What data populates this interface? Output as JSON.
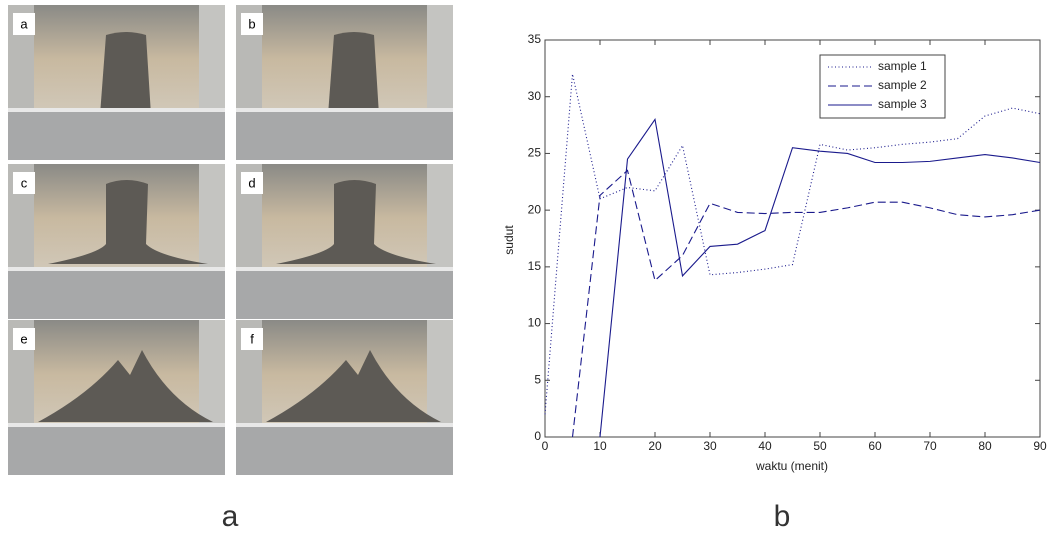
{
  "photos": {
    "labels": [
      "a",
      "b",
      "c",
      "d",
      "e",
      "f"
    ]
  },
  "panel_labels": [
    "a",
    "b"
  ],
  "chart_data": {
    "type": "line",
    "x_label": "waktu (menit)",
    "y_label": "sudut",
    "x": [
      0,
      5,
      10,
      15,
      20,
      25,
      30,
      35,
      40,
      45,
      50,
      55,
      60,
      65,
      70,
      75,
      80,
      85,
      90
    ],
    "series": [
      {
        "name": "sample 1",
        "color": "#1a1a8c",
        "dash": "1,2.5",
        "values": [
          2,
          32,
          21,
          22,
          21.7,
          25.7,
          14.3,
          14.5,
          14.8,
          15.2,
          25.8,
          25.3,
          25.5,
          25.8,
          26,
          26.3,
          28.3,
          29,
          28.5
        ]
      },
      {
        "name": "sample 2",
        "color": "#1a1a8c",
        "dash": "8,4",
        "values": [
          null,
          0,
          21.3,
          23.5,
          13.8,
          16,
          20.6,
          19.8,
          19.7,
          19.8,
          19.8,
          20.2,
          20.7,
          20.7,
          20.2,
          19.6,
          19.4,
          19.6,
          20
        ]
      },
      {
        "name": "sample 3",
        "color": "#1a1a8c",
        "dash": "none",
        "values": [
          null,
          null,
          0,
          24.5,
          28,
          14.2,
          16.8,
          17,
          18.2,
          25.5,
          25.2,
          25,
          24.2,
          24.2,
          24.3,
          24.6,
          24.9,
          24.6,
          24.2
        ]
      }
    ],
    "xlim": [
      0,
      90
    ],
    "xticks": [
      0,
      10,
      20,
      30,
      40,
      50,
      60,
      70,
      80,
      90
    ],
    "ylim": [
      0,
      35
    ],
    "yticks": [
      0,
      5,
      10,
      15,
      20,
      25,
      30,
      35
    ],
    "legend": "upper-right"
  }
}
